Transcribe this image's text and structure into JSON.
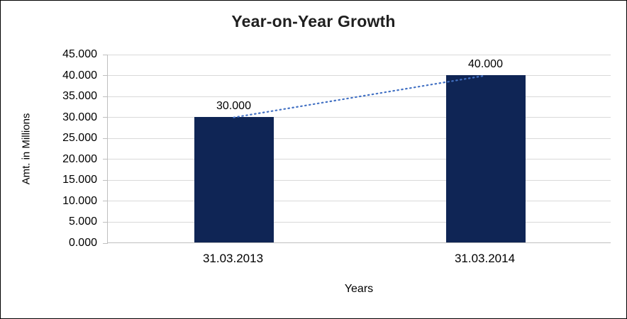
{
  "chart_data": {
    "type": "bar",
    "title": "Year-on-Year Growth",
    "xlabel": "Years",
    "ylabel": "Amt. in Millions",
    "categories": [
      "31.03.2013",
      "31.03.2014"
    ],
    "values": [
      30000,
      40000
    ],
    "value_labels": [
      "30.000",
      "40.000"
    ],
    "ylim": [
      0,
      45000
    ],
    "ytick_step": 5000,
    "ytick_labels": [
      "0.000",
      "5.000",
      "10.000",
      "15.000",
      "20.000",
      "25.000",
      "30.000",
      "35.000",
      "40.000",
      "45.000"
    ],
    "grid": true,
    "legend": "none",
    "bar_color": "#0f2555",
    "trendline_color": "#4472c4",
    "trendline_style": "dotted",
    "gridline_color": "#d9d9d9",
    "axis_color": "#bfbfbf"
  }
}
